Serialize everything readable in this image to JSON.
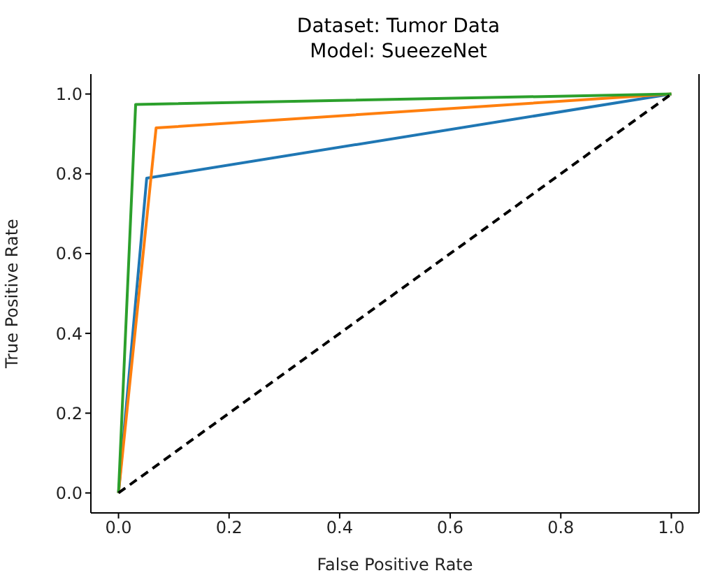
{
  "chart_data": {
    "type": "line",
    "title": "Dataset: Tumor Data\nModel: SueezeNet",
    "xlabel": "False Positive Rate",
    "ylabel": "True Positive Rate",
    "xlim": [
      -0.05,
      1.05
    ],
    "ylim": [
      -0.05,
      1.05
    ],
    "xticks": [
      {
        "value": 0,
        "label": "0.0"
      },
      {
        "value": 0.2,
        "label": "0.2"
      },
      {
        "value": 0.4,
        "label": "0.4"
      },
      {
        "value": 0.6,
        "label": "0.6"
      },
      {
        "value": 0.8,
        "label": "0.8"
      },
      {
        "value": 1,
        "label": "1.0"
      }
    ],
    "yticks": [
      {
        "value": 0,
        "label": "0.0"
      },
      {
        "value": 0.2,
        "label": "0.2"
      },
      {
        "value": 0.4,
        "label": "0.4"
      },
      {
        "value": 0.6,
        "label": "0.6"
      },
      {
        "value": 0.8,
        "label": "0.8"
      },
      {
        "value": 1,
        "label": "1.0"
      }
    ],
    "series": [
      {
        "color": "#1f77b4",
        "x": [
          0,
          0.051,
          1
        ],
        "values": [
          0,
          0.789,
          1
        ]
      },
      {
        "color": "#ff7f0e",
        "x": [
          0,
          0.068,
          1
        ],
        "values": [
          0,
          0.915,
          1
        ]
      },
      {
        "color": "#2ca02c",
        "x": [
          0,
          0.031,
          1
        ],
        "values": [
          0,
          0.974,
          1
        ]
      },
      {
        "color": "#000000",
        "line_style": "dashed",
        "x": [
          0,
          1
        ],
        "values": [
          0,
          1
        ]
      }
    ]
  }
}
